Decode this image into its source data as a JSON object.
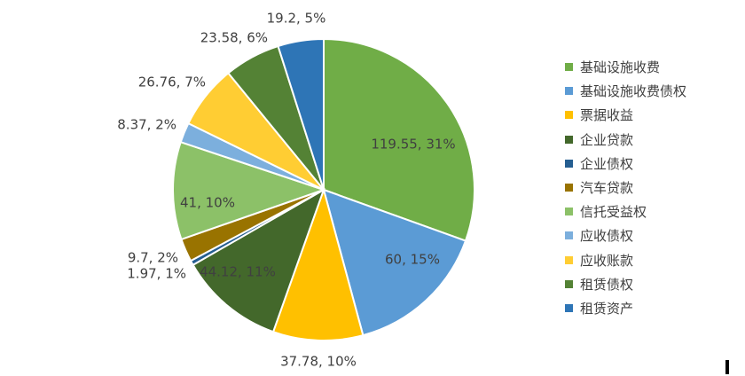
{
  "chart_data": {
    "type": "pie",
    "title": "",
    "slices": [
      {
        "name": "基础设施收费",
        "value": 119.55,
        "label": "119.55, 31%",
        "color": "#70ad47"
      },
      {
        "name": "基础设施收费债权",
        "value": 60,
        "label": "60, 15%",
        "color": "#5b9bd5"
      },
      {
        "name": "票据收益",
        "value": 37.78,
        "label": "37.78, 10%",
        "color": "#ffc000"
      },
      {
        "name": "企业贷款",
        "value": 44.12,
        "label": "44.12, 11%",
        "color": "#43682b"
      },
      {
        "name": "企业债权",
        "value": 1.97,
        "label": "1.97, 1%",
        "color": "#255e91"
      },
      {
        "name": "汽车贷款",
        "value": 9.7,
        "label": "9.7, 2%",
        "color": "#997300"
      },
      {
        "name": "信托受益权",
        "value": 41,
        "label": "41, 10%",
        "color": "#8cc168"
      },
      {
        "name": "应收债权",
        "value": 8.37,
        "label": "8.37, 2%",
        "color": "#7cafdd"
      },
      {
        "name": "应收账款",
        "value": 26.76,
        "label": "26.76, 7%",
        "color": "#ffcd33"
      },
      {
        "name": "租赁债权",
        "value": 23.58,
        "label": "23.58, 6%",
        "color": "#548235"
      },
      {
        "name": "租赁资产",
        "value": 19.2,
        "label": "19.2, 5%",
        "color": "#2e75b6"
      }
    ],
    "legend_position": "right"
  }
}
